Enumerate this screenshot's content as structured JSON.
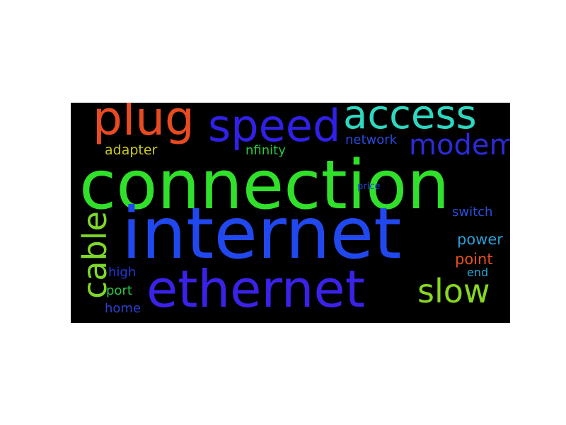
{
  "wordcloud": {
    "background": "#000000",
    "words": [
      {
        "key": "connection",
        "text": "connection",
        "color": "#30e02a"
      },
      {
        "key": "internet",
        "text": "internet",
        "color": "#2148ee"
      },
      {
        "key": "ethernet",
        "text": "ethernet",
        "color": "#3a22ea"
      },
      {
        "key": "plug",
        "text": "plug",
        "color": "#e84a22"
      },
      {
        "key": "speed",
        "text": "speed",
        "color": "#3020e8"
      },
      {
        "key": "access",
        "text": "access",
        "color": "#2ed8c0"
      },
      {
        "key": "modem",
        "text": "modem",
        "color": "#2d2ad8"
      },
      {
        "key": "cable",
        "text": "cable",
        "color": "#7ed82a"
      },
      {
        "key": "slow",
        "text": "slow",
        "color": "#86d81e"
      },
      {
        "key": "adapter",
        "text": "adapter",
        "color": "#c8c81e"
      },
      {
        "key": "nfinity",
        "text": "nfinity",
        "color": "#28c840"
      },
      {
        "key": "network",
        "text": "network",
        "color": "#2a4ad8"
      },
      {
        "key": "price",
        "text": "price",
        "color": "#2446d8"
      },
      {
        "key": "switch",
        "text": "switch",
        "color": "#2a4fe0"
      },
      {
        "key": "power",
        "text": "power",
        "color": "#2aa0d8"
      },
      {
        "key": "point",
        "text": "point",
        "color": "#e85020"
      },
      {
        "key": "end",
        "text": "end",
        "color": "#22a8d8"
      },
      {
        "key": "high",
        "text": "high",
        "color": "#2238d8"
      },
      {
        "key": "port",
        "text": "port",
        "color": "#28c848"
      },
      {
        "key": "home",
        "text": "home",
        "color": "#2a40d0"
      }
    ]
  }
}
